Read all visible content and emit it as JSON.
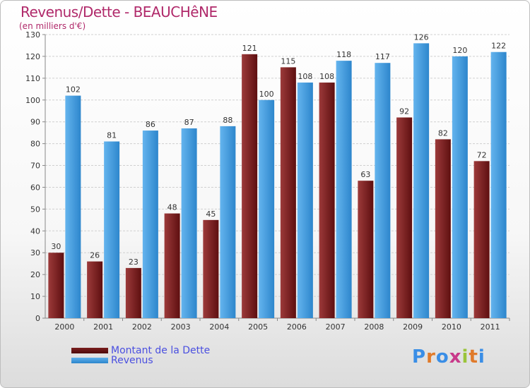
{
  "title": "Revenus/Dette - BEAUCHêNE",
  "subtitle": "(en milliers d'€)",
  "logo": {
    "letters": [
      "P",
      "r",
      "o",
      "x",
      "i",
      "t",
      "i"
    ],
    "colors": [
      "#3a8ee6",
      "#e07a2a",
      "#3a8ee6",
      "#c83a8a",
      "#9ac43a",
      "#e07a2a",
      "#3a8ee6"
    ]
  },
  "chart_data": {
    "type": "bar",
    "title": "Revenus/Dette - BEAUCHêNE",
    "ylabel": "(en milliers d'€)",
    "categories": [
      "2000",
      "2001",
      "2002",
      "2003",
      "2004",
      "2005",
      "2006",
      "2007",
      "2008",
      "2009",
      "2010",
      "2011"
    ],
    "ylim": [
      0,
      130
    ],
    "yticks": [
      0,
      10,
      20,
      30,
      40,
      50,
      60,
      70,
      80,
      90,
      100,
      110,
      120,
      130
    ],
    "grid": true,
    "legend_position": "bottom-left",
    "series": [
      {
        "name": "Montant de la Dette",
        "color": "#7a1e1e",
        "values": [
          30,
          26,
          23,
          48,
          45,
          121,
          115,
          108,
          63,
          92,
          82,
          72
        ]
      },
      {
        "name": "Revenus",
        "color": "#3f9be0",
        "values": [
          102,
          81,
          86,
          87,
          88,
          100,
          108,
          118,
          117,
          126,
          120,
          122
        ]
      }
    ]
  }
}
